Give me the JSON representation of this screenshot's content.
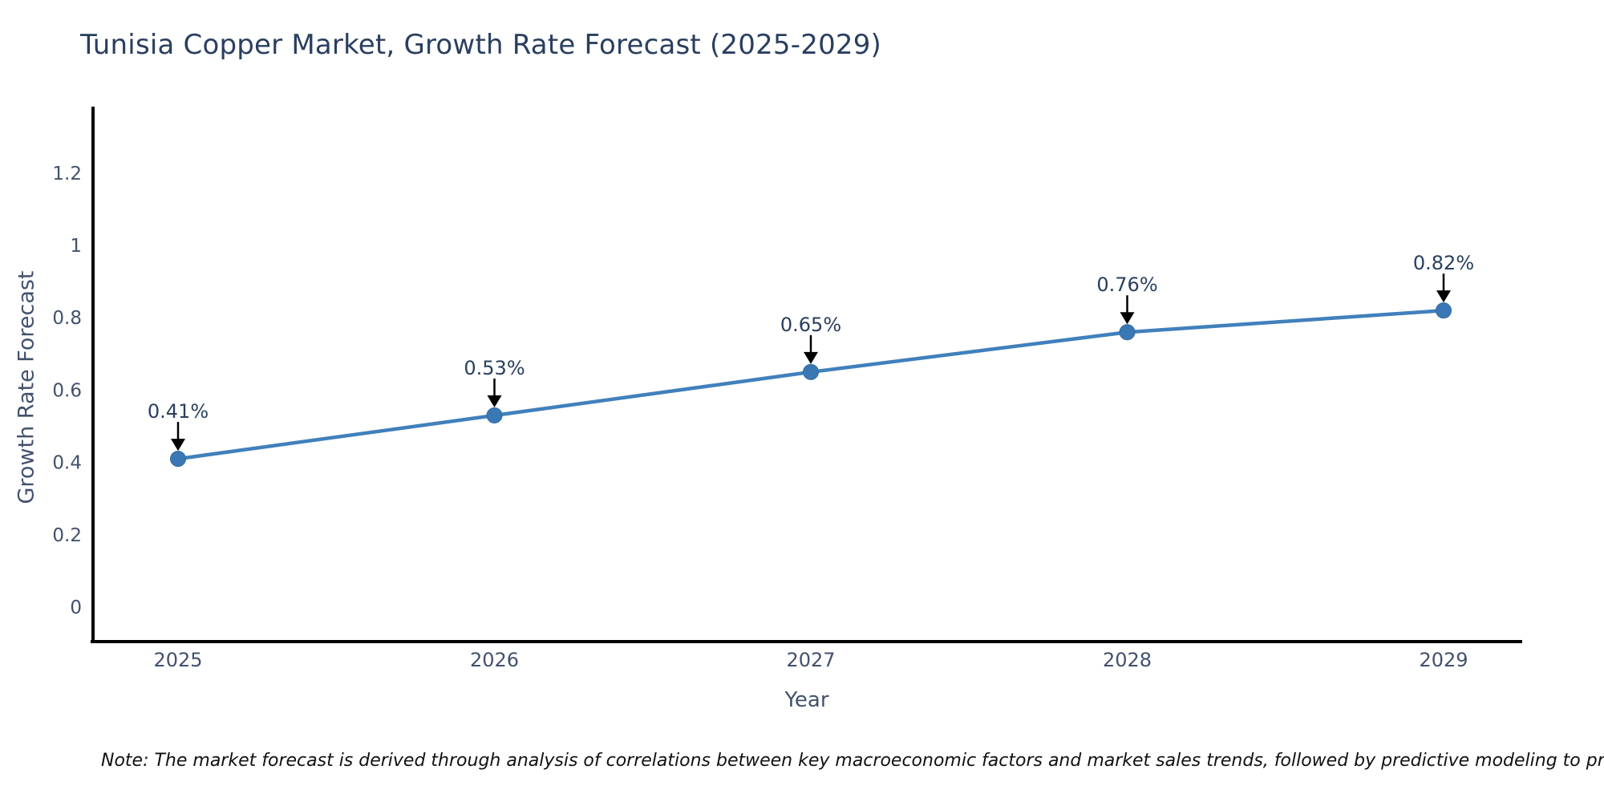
{
  "header": {
    "title": "Tunisia Copper Market, Growth Rate Forecast (2025-2029)"
  },
  "footnote": {
    "text": "Note: The market forecast is derived through analysis of correlations between key macroeconomic factors and market sales trends, followed by predictive modeling to project future sales"
  },
  "chart_data": {
    "type": "line",
    "title": "Tunisia Copper Market, Growth Rate Forecast (2025-2029)",
    "xlabel": "Year",
    "ylabel": "Growth Rate Forecast",
    "categories": [
      "2025",
      "2026",
      "2027",
      "2028",
      "2029"
    ],
    "series": [
      {
        "name": "Growth Rate Forecast",
        "values": [
          0.41,
          0.53,
          0.65,
          0.76,
          0.82
        ],
        "point_labels": [
          "0.41%",
          "0.53%",
          "0.65%",
          "0.76%",
          "0.82%"
        ]
      }
    ],
    "yticks": [
      0,
      0.2,
      0.4,
      0.6,
      0.8,
      1,
      1.2
    ],
    "ytick_labels": [
      "0",
      "0.2",
      "0.4",
      "0.6",
      "0.8",
      "1",
      "1.2"
    ],
    "ylim": [
      -0.095,
      1.384
    ],
    "grid": false,
    "legend_position": "none",
    "annotation_style": "value-label-with-down-arrow",
    "colors": {
      "line": "#4080bc",
      "marker": "#3a78b5",
      "marker_edge": "#326a9e",
      "arrow": "#000000",
      "axis_line": "#000000",
      "title_text": "#2a3f5f",
      "tick_text": "#42516d",
      "annotation_text": "#2a3f5f",
      "note_text": "#111111",
      "background": "#ffffff"
    }
  }
}
